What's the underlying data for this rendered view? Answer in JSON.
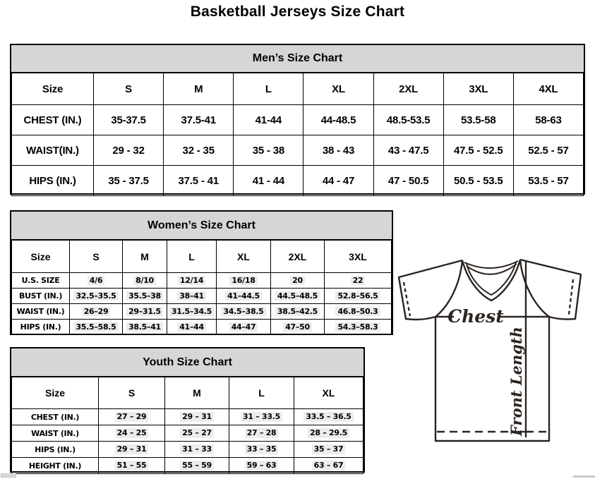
{
  "title": "Basketball Jerseys Size Chart",
  "mens": {
    "title": "Men’s Size Chart",
    "columns": [
      "Size",
      "S",
      "M",
      "L",
      "XL",
      "2XL",
      "3XL",
      "4XL"
    ],
    "rows": [
      {
        "label": "CHEST (IN.)",
        "values": [
          "35-37.5",
          "37.5-41",
          "41-44",
          "44-48.5",
          "48.5-53.5",
          "53.5-58",
          "58-63"
        ]
      },
      {
        "label": "WAIST(IN.)",
        "values": [
          "29 - 32",
          "32 - 35",
          "35 - 38",
          "38 - 43",
          "43 - 47.5",
          "47.5 - 52.5",
          "52.5 - 57"
        ]
      },
      {
        "label": "HIPS (IN.)",
        "values": [
          "35 - 37.5",
          "37.5 - 41",
          "41 - 44",
          "44 - 47",
          "47 - 50.5",
          "50.5 - 53.5",
          "53.5 - 57"
        ]
      }
    ]
  },
  "womens": {
    "title": "Women’s Size Chart",
    "columns": [
      "Size",
      "S",
      "M",
      "L",
      "XL",
      "2XL",
      "3XL"
    ],
    "rows": [
      {
        "label": "U.S. SIZE",
        "values": [
          "4/6",
          "8/10",
          "12/14",
          "16/18",
          "20",
          "22"
        ]
      },
      {
        "label": "BUST (IN.)",
        "values": [
          "32.5–35.5",
          "35.5–38",
          "38–41",
          "41–44.5",
          "44.5–48.5",
          "52.8–56.5"
        ]
      },
      {
        "label": "WAIST (IN.)",
        "values": [
          "26–29",
          "29–31.5",
          "31.5–34.5",
          "34.5–38.5",
          "38.5–42.5",
          "46.8–50.3"
        ]
      },
      {
        "label": "HIPS (IN.)",
        "values": [
          "35.5–58.5",
          "38.5–41",
          "41–44",
          "44–47",
          "47–50",
          "54.3–58.3"
        ]
      }
    ]
  },
  "youth": {
    "title": "Youth Size Chart",
    "columns": [
      "Size",
      "S",
      "M",
      "L",
      "XL"
    ],
    "rows": [
      {
        "label": "CHEST (IN.)",
        "values": [
          "27 – 29",
          "29 – 31",
          "31 – 33.5",
          "33.5 – 36.5"
        ]
      },
      {
        "label": "WAIST (IN.)",
        "values": [
          "24 – 25",
          "25 – 27",
          "27 – 28",
          "28 – 29.5"
        ]
      },
      {
        "label": "HIPS (IN.)",
        "values": [
          "29 – 31",
          "31 – 33",
          "33 – 35",
          "35 – 37"
        ]
      },
      {
        "label": "HEIGHT (IN.)",
        "values": [
          "51 – 55",
          "55 – 59",
          "59 – 63",
          "63 – 67"
        ]
      }
    ]
  },
  "diagram": {
    "chest_label": "Chest",
    "front_length_label": "Front Length"
  },
  "colors": {
    "header_band_bg": "#d6d6d6",
    "table_border": "#000000",
    "diagram_line": "#2b2420",
    "value_highlight": "#ececec"
  }
}
